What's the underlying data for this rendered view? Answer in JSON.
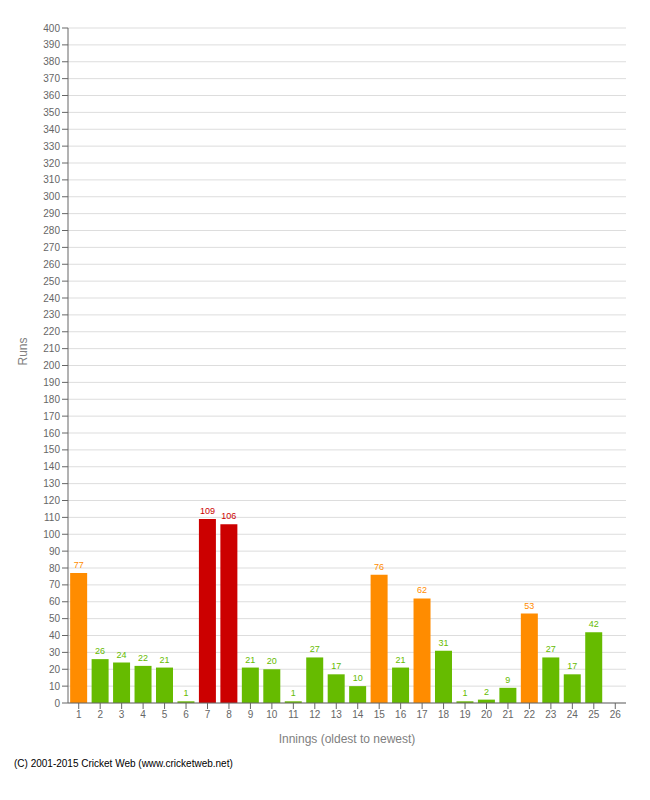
{
  "chart_data": {
    "type": "bar",
    "xlabel": "Innings (oldest to newest)",
    "ylabel": "Runs",
    "categories": [
      "1",
      "2",
      "3",
      "4",
      "5",
      "6",
      "7",
      "8",
      "9",
      "10",
      "11",
      "12",
      "13",
      "14",
      "15",
      "16",
      "17",
      "18",
      "19",
      "20",
      "21",
      "22",
      "23",
      "24",
      "25",
      "26"
    ],
    "values": [
      77,
      26,
      24,
      22,
      21,
      1,
      109,
      106,
      21,
      20,
      1,
      27,
      17,
      10,
      76,
      21,
      62,
      31,
      1,
      2,
      9,
      53,
      27,
      17,
      42,
      0
    ],
    "colors": [
      "#ff8c00",
      "#66bb00",
      "#66bb00",
      "#66bb00",
      "#66bb00",
      "#66bb00",
      "#cc0000",
      "#cc0000",
      "#66bb00",
      "#66bb00",
      "#66bb00",
      "#66bb00",
      "#66bb00",
      "#66bb00",
      "#ff8c00",
      "#66bb00",
      "#ff8c00",
      "#66bb00",
      "#66bb00",
      "#66bb00",
      "#66bb00",
      "#ff8c00",
      "#66bb00",
      "#66bb00",
      "#66bb00",
      "#66bb00"
    ],
    "ylim": [
      0,
      400
    ],
    "yticks": [
      0,
      10,
      20,
      30,
      40,
      50,
      60,
      70,
      80,
      90,
      100,
      110,
      120,
      130,
      140,
      150,
      160,
      170,
      180,
      190,
      200,
      210,
      220,
      230,
      240,
      250,
      260,
      270,
      280,
      290,
      300,
      310,
      320,
      330,
      340,
      350,
      360,
      370,
      380,
      390,
      400
    ],
    "grid": true,
    "data_labels": true,
    "annotations": [
      "(C) 2001-2015 Cricket Web (www.cricketweb.net)"
    ]
  }
}
